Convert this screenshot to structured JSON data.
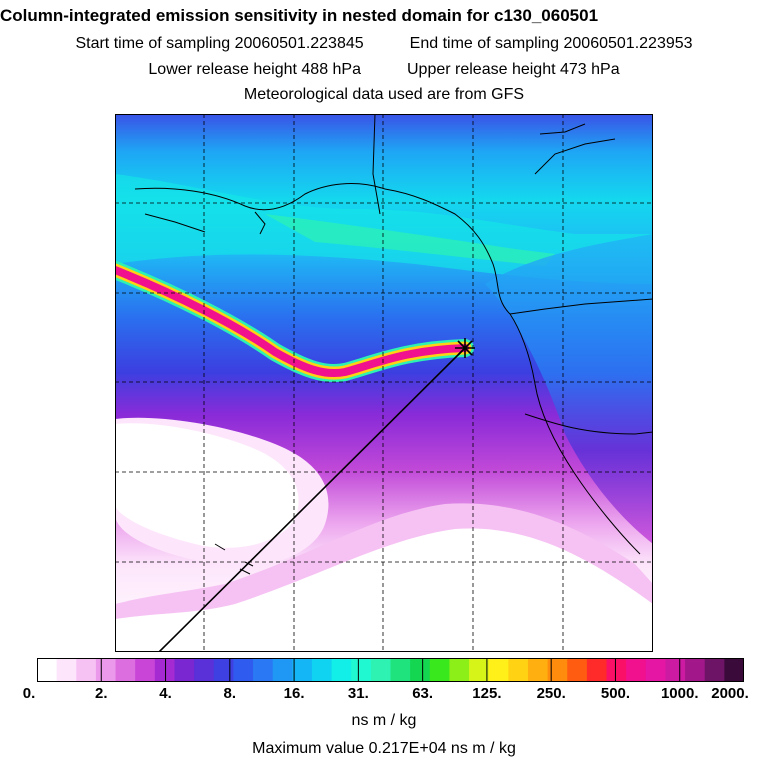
{
  "title": "Column-integrated emission sensitivity in nested domain for c130_060501",
  "sampling": {
    "start": "Start time of sampling 20060501.223845",
    "end": "End time of sampling 20060501.223953"
  },
  "release": {
    "lower": "Lower release height  488 hPa",
    "upper": "Upper release height  473 hPa"
  },
  "met_note": "Meteorological data used are from GFS",
  "legend": {
    "tick_labels": [
      "0.",
      "2.",
      "4.",
      "8.",
      "16.",
      "31.",
      "63.",
      "125.",
      "250.",
      "500.",
      "1000.",
      "2000."
    ],
    "colors": [
      "#ffffff",
      "#fde6fb",
      "#f6c2f3",
      "#eb9aeb",
      "#dd6ee0",
      "#c845d8",
      "#a52ad2",
      "#7a27d2",
      "#5a30d8",
      "#3f40e2",
      "#2f5cee",
      "#2a78f3",
      "#1f98f5",
      "#14b6f5",
      "#0fd3f0",
      "#12eee8",
      "#20f8d2",
      "#2ef2b2",
      "#1fe47e",
      "#14d650",
      "#3ae81e",
      "#8cf018",
      "#d6f418",
      "#fff01a",
      "#ffd214",
      "#ffb010",
      "#ff8c0c",
      "#ff5c12",
      "#ff2a2a",
      "#fb1068",
      "#f1108e",
      "#e516a4",
      "#cc1aa2",
      "#a2188a",
      "#6e1466",
      "#3a0a3a"
    ],
    "units": "ns m / kg"
  },
  "max_value": "Maximum value  0.217E+04 ns m / kg"
}
